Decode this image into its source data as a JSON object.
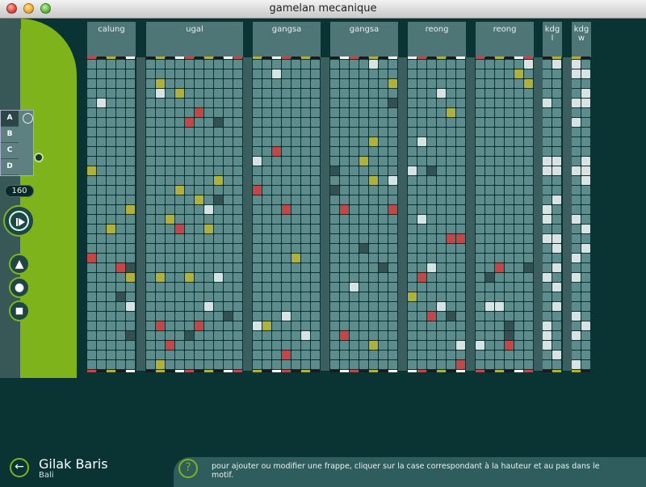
{
  "window": {
    "title": "gamelan mecanique"
  },
  "sidebar": {
    "patterns": [
      "A",
      "B",
      "C",
      "D"
    ],
    "active_pattern": "A",
    "tempo": "160"
  },
  "instruments": [
    {
      "label": "calung"
    },
    {
      "label": "ugal"
    },
    {
      "label": "gangsa"
    },
    {
      "label": "gangsa"
    },
    {
      "label": "reong"
    },
    {
      "label": "reong"
    },
    {
      "label": "kdg\nl"
    },
    {
      "label": "kdg\nw"
    }
  ],
  "footer": {
    "piece_title": "Gilak Baris",
    "piece_subtitle": "Bali",
    "help_text": "pour ajouter ou modifier une frappe, cliquer sur la case correspondant à la hauteur et au pas dans le motif."
  },
  "colors": {
    "accent_green": "#7fb31c",
    "grid_bg": "#0a3434",
    "cell": "#5e8c8c",
    "note_red": "#c04848",
    "note_yellow": "#b0b040",
    "note_dark": "#355050",
    "note_light": "#d8e4e4"
  }
}
